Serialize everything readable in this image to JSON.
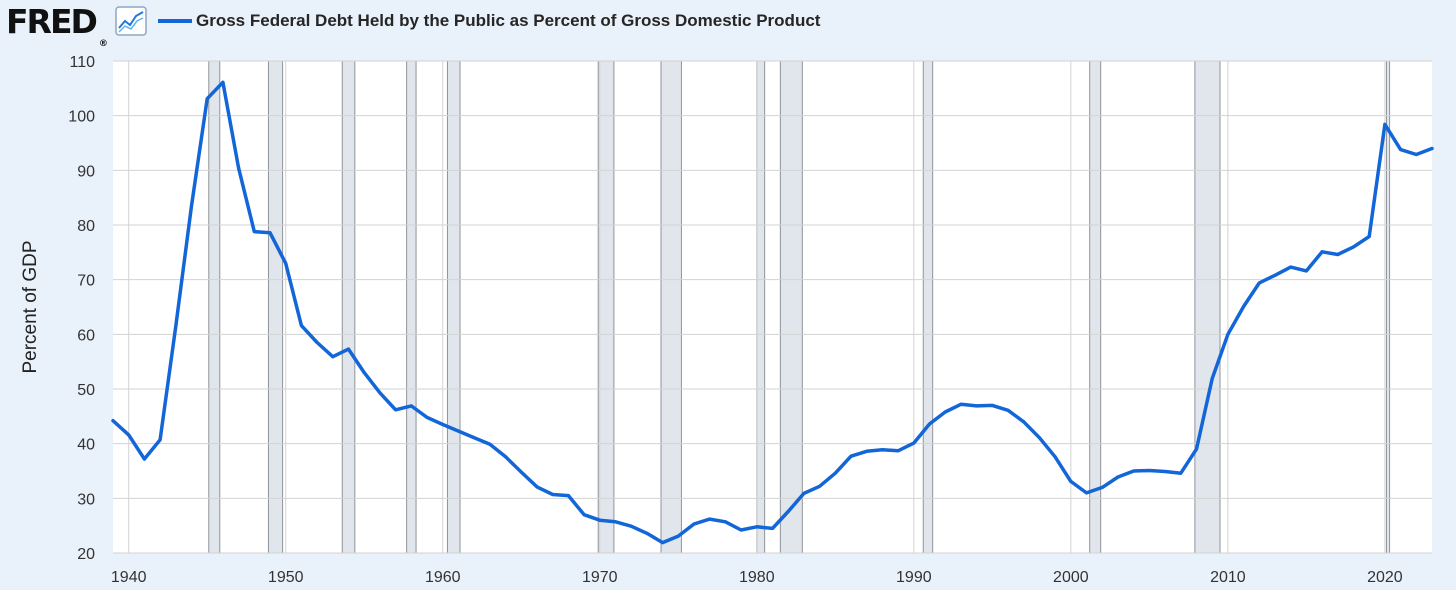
{
  "header": {
    "logo_text": "FRED",
    "logo_mark": "®",
    "icon": "trend-line-icon"
  },
  "colors": {
    "series": "#1266d8",
    "background": "#e9f1fb",
    "plot_background": "#ffffff",
    "recession": "#e1e6ec",
    "grid": "#d3d3d3"
  },
  "chart_data": {
    "type": "line",
    "title": "Gross Federal Debt Held by the Public as Percent of Gross Domestic Product",
    "xlabel": "",
    "ylabel": "Percent of GDP",
    "xlim": [
      1939,
      2023
    ],
    "ylim": [
      20,
      110
    ],
    "yticks": [
      20,
      30,
      40,
      50,
      60,
      70,
      80,
      90,
      100,
      110
    ],
    "xticks": [
      1940,
      1950,
      1960,
      1970,
      1980,
      1990,
      2000,
      2010,
      2020
    ],
    "grid": true,
    "legend_position": "top",
    "recessions": [
      [
        1945.1,
        1945.8
      ],
      [
        1948.9,
        1949.8
      ],
      [
        1953.6,
        1954.4
      ],
      [
        1957.7,
        1958.3
      ],
      [
        1960.3,
        1961.1
      ],
      [
        1969.9,
        1970.9
      ],
      [
        1973.9,
        1975.2
      ],
      [
        1980.0,
        1980.5
      ],
      [
        1981.5,
        1982.9
      ],
      [
        1990.6,
        1991.2
      ],
      [
        2001.2,
        2001.9
      ],
      [
        2007.9,
        2009.5
      ],
      [
        2020.1,
        2020.3
      ]
    ],
    "series": [
      {
        "name": "Gross Federal Debt Held by the Public as Percent of Gross Domestic Product",
        "x": [
          1939,
          1940,
          1941,
          1942,
          1943,
          1944,
          1945,
          1946,
          1947,
          1948,
          1949,
          1950,
          1951,
          1952,
          1953,
          1954,
          1955,
          1956,
          1957,
          1958,
          1959,
          1960,
          1961,
          1962,
          1963,
          1964,
          1965,
          1966,
          1967,
          1968,
          1969,
          1970,
          1971,
          1972,
          1973,
          1974,
          1975,
          1976,
          1977,
          1978,
          1979,
          1980,
          1981,
          1982,
          1983,
          1984,
          1985,
          1986,
          1987,
          1988,
          1989,
          1990,
          1991,
          1992,
          1993,
          1994,
          1995,
          1996,
          1997,
          1998,
          1999,
          2000,
          2001,
          2002,
          2003,
          2004,
          2005,
          2006,
          2007,
          2008,
          2009,
          2010,
          2011,
          2012,
          2013,
          2014,
          2015,
          2016,
          2017,
          2018,
          2019,
          2020,
          2021,
          2022,
          2023
        ],
        "values": [
          44.2,
          41.6,
          37.2,
          40.7,
          61.5,
          83.5,
          103.1,
          106.1,
          90.4,
          78.8,
          78.6,
          73.0,
          61.6,
          58.5,
          55.9,
          57.3,
          53.0,
          49.3,
          46.2,
          46.9,
          44.8,
          43.5,
          42.3,
          41.1,
          39.9,
          37.6,
          34.8,
          32.1,
          30.7,
          30.5,
          27.0,
          26.0,
          25.7,
          24.9,
          23.6,
          21.9,
          23.1,
          25.3,
          26.2,
          25.7,
          24.2,
          24.8,
          24.5,
          27.6,
          30.9,
          32.2,
          34.6,
          37.7,
          38.6,
          38.9,
          38.7,
          40.1,
          43.6,
          45.8,
          47.2,
          46.9,
          47.0,
          46.1,
          44.0,
          41.1,
          37.6,
          33.1,
          31.0,
          32.0,
          33.9,
          35.0,
          35.1,
          34.9,
          34.6,
          39.0,
          51.9,
          60.0,
          65.1,
          69.4,
          70.8,
          72.3,
          71.6,
          75.1,
          74.6,
          76.0,
          77.9,
          98.4,
          93.8,
          92.9,
          94.0
        ]
      }
    ]
  }
}
